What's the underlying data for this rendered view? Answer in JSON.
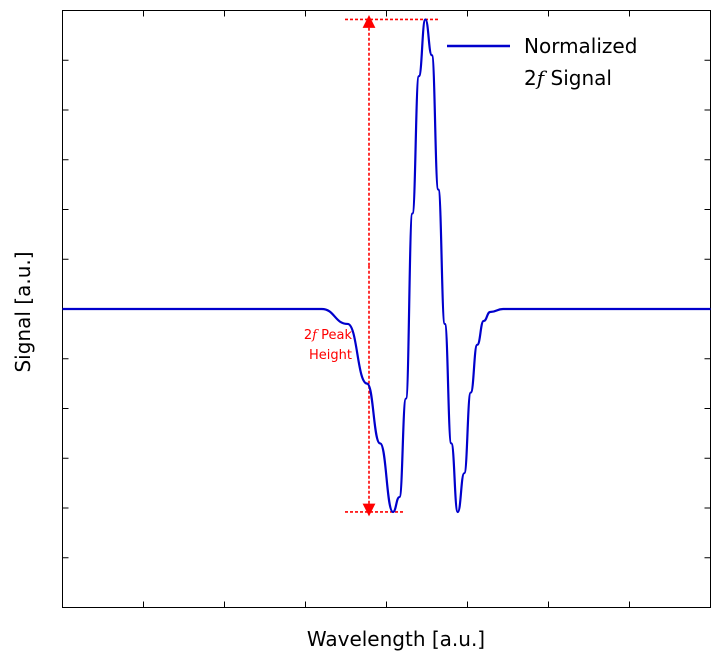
{
  "chart_data": {
    "type": "line",
    "title": "",
    "xlabel": "Wavelength [a.u.]",
    "ylabel": "Signal [a.u.]",
    "xlim": [
      0,
      1
    ],
    "ylim": [
      -1,
      1
    ],
    "x_tick_labels_shown": false,
    "y_tick_labels_shown": false,
    "grid": false,
    "legend": {
      "placement": "top-right",
      "entries": [
        {
          "line1": "Normalized",
          "line2_prefix": "2",
          "line2_italic": "f",
          "line2_suffix": " Signal"
        }
      ]
    },
    "series": [
      {
        "name": "Normalized 2f Signal",
        "color": "#0000cc",
        "x": [
          0.0,
          0.4,
          0.44,
          0.47,
          0.49,
          0.51,
          0.52,
          0.53,
          0.54,
          0.55,
          0.56,
          0.57,
          0.58,
          0.59,
          0.6,
          0.61,
          0.62,
          0.63,
          0.64,
          0.65,
          0.66,
          0.68,
          0.7,
          0.74,
          1.0
        ],
        "y": [
          0.0,
          0.0,
          -0.05,
          -0.25,
          -0.45,
          -0.68,
          -0.63,
          -0.3,
          0.32,
          0.78,
          0.97,
          0.85,
          0.4,
          -0.05,
          -0.45,
          -0.68,
          -0.55,
          -0.28,
          -0.12,
          -0.04,
          -0.01,
          0.0,
          0.0,
          0.0,
          0.0
        ]
      }
    ],
    "annotations": [
      {
        "type": "peak-height-arrow",
        "color": "#ff0000",
        "top_value": 0.97,
        "bottom_value": -0.68,
        "label_line1_prefix": "2",
        "label_line1_italic": "f",
        "label_line1_suffix": " Peak",
        "label_line2": "Height"
      }
    ]
  }
}
